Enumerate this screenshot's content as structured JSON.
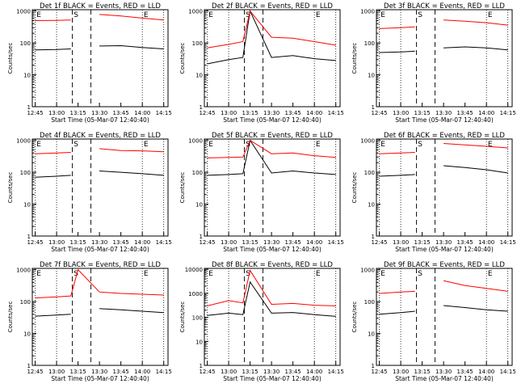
{
  "figure": {
    "common": {
      "xlabel": "Start Time (05-Mar-07 12:40:40)",
      "ylabel": "Counts/sec",
      "x_ticks": [
        "12:45",
        "13:00",
        "13:15",
        "13:30",
        "13:45",
        "14:00",
        "14:15"
      ],
      "y_ticks": [
        "1",
        "10",
        "100",
        "1000"
      ],
      "y_ticks_panel8": [
        "1",
        "10",
        "100",
        "1000",
        "10000"
      ],
      "marker_labels": [
        "E",
        "S",
        "E"
      ],
      "colors": {
        "events": "#000000",
        "lld": "#ff0000"
      }
    }
  },
  "chart_data": [
    {
      "type": "line",
      "panel": 1,
      "title": "Det 1f BLACK = Events, RED = LLD",
      "xlim": [
        "12:43",
        "14:18"
      ],
      "ylim": [
        1,
        1100
      ],
      "yscale": "log",
      "x": [
        "12:45",
        "13:00",
        "13:10",
        "13:15",
        "13:30",
        "13:45",
        "14:00",
        "14:15"
      ],
      "series": [
        {
          "name": "Events",
          "color": "#000000",
          "values": [
            60,
            62,
            65,
            null,
            80,
            82,
            72,
            65
          ]
        },
        {
          "name": "LLD",
          "color": "#ff0000",
          "values": [
            500,
            510,
            520,
            null,
            780,
            700,
            600,
            520
          ]
        }
      ]
    },
    {
      "type": "line",
      "panel": 2,
      "title": "Det 2f BLACK = Events, RED = LLD",
      "xlim": [
        "12:43",
        "14:18"
      ],
      "ylim": [
        1,
        1100
      ],
      "yscale": "log",
      "x": [
        "12:45",
        "13:00",
        "13:10",
        "13:15",
        "13:30",
        "13:45",
        "14:00",
        "14:15"
      ],
      "series": [
        {
          "name": "Events",
          "color": "#000000",
          "values": [
            22,
            30,
            35,
            1000,
            35,
            40,
            32,
            28
          ]
        },
        {
          "name": "LLD",
          "color": "#ff0000",
          "values": [
            70,
            90,
            110,
            1000,
            150,
            140,
            110,
            85
          ]
        }
      ]
    },
    {
      "type": "line",
      "panel": 3,
      "title": "Det 3f BLACK = Events, RED = LLD",
      "xlim": [
        "12:43",
        "14:18"
      ],
      "ylim": [
        1,
        1100
      ],
      "yscale": "log",
      "x": [
        "12:45",
        "13:00",
        "13:10",
        "13:15",
        "13:30",
        "13:45",
        "14:00",
        "14:15"
      ],
      "series": [
        {
          "name": "Events",
          "color": "#000000",
          "values": [
            50,
            52,
            55,
            null,
            70,
            75,
            70,
            60
          ]
        },
        {
          "name": "LLD",
          "color": "#ff0000",
          "values": [
            280,
            300,
            320,
            null,
            520,
            480,
            430,
            360
          ]
        }
      ]
    },
    {
      "type": "line",
      "panel": 4,
      "title": "Det 4f BLACK = Events, RED = LLD",
      "xlim": [
        "12:43",
        "14:18"
      ],
      "ylim": [
        1,
        1100
      ],
      "yscale": "log",
      "x": [
        "12:45",
        "13:00",
        "13:10",
        "13:15",
        "13:30",
        "13:45",
        "14:00",
        "14:15"
      ],
      "series": [
        {
          "name": "Events",
          "color": "#000000",
          "values": [
            70,
            75,
            80,
            null,
            110,
            100,
            90,
            80
          ]
        },
        {
          "name": "LLD",
          "color": "#ff0000",
          "values": [
            380,
            400,
            420,
            null,
            550,
            480,
            470,
            440
          ]
        }
      ]
    },
    {
      "type": "line",
      "panel": 5,
      "title": "Det 5f BLACK = Events, RED = LLD",
      "xlim": [
        "12:43",
        "14:18"
      ],
      "ylim": [
        1,
        1100
      ],
      "yscale": "log",
      "x": [
        "12:45",
        "13:00",
        "13:10",
        "13:15",
        "13:30",
        "13:45",
        "14:00",
        "14:15"
      ],
      "series": [
        {
          "name": "Events",
          "color": "#000000",
          "values": [
            80,
            85,
            90,
            1000,
            95,
            110,
            95,
            85
          ]
        },
        {
          "name": "LLD",
          "color": "#ff0000",
          "values": [
            280,
            290,
            300,
            1000,
            380,
            400,
            330,
            290
          ]
        }
      ]
    },
    {
      "type": "line",
      "panel": 6,
      "title": "Det 6f BLACK = Events, RED = LLD",
      "xlim": [
        "12:43",
        "14:18"
      ],
      "ylim": [
        1,
        1100
      ],
      "yscale": "log",
      "x": [
        "12:45",
        "13:00",
        "13:10",
        "13:15",
        "13:30",
        "13:45",
        "14:00",
        "14:15"
      ],
      "series": [
        {
          "name": "Events",
          "color": "#000000",
          "values": [
            75,
            80,
            85,
            null,
            160,
            140,
            120,
            95
          ]
        },
        {
          "name": "LLD",
          "color": "#ff0000",
          "values": [
            380,
            400,
            420,
            null,
            800,
            720,
            650,
            580
          ]
        }
      ]
    },
    {
      "type": "line",
      "panel": 7,
      "title": "Det 7f BLACK = Events, RED = LLD",
      "xlim": [
        "12:43",
        "14:18"
      ],
      "ylim": [
        1,
        1100
      ],
      "yscale": "log",
      "x": [
        "12:45",
        "13:00",
        "13:10",
        "13:15",
        "13:30",
        "13:45",
        "14:00",
        "14:15"
      ],
      "series": [
        {
          "name": "Events",
          "color": "#000000",
          "values": [
            35,
            38,
            40,
            null,
            60,
            55,
            50,
            45
          ]
        },
        {
          "name": "LLD",
          "color": "#ff0000",
          "values": [
            130,
            140,
            150,
            1000,
            200,
            180,
            170,
            160
          ]
        }
      ]
    },
    {
      "type": "line",
      "panel": 8,
      "title": "Det 8f BLACK = Events, RED = LLD",
      "xlim": [
        "12:43",
        "14:18"
      ],
      "ylim": [
        1,
        11000
      ],
      "yscale": "log",
      "x": [
        "12:45",
        "13:00",
        "13:10",
        "13:15",
        "13:30",
        "13:45",
        "14:00",
        "14:15"
      ],
      "series": [
        {
          "name": "Events",
          "color": "#000000",
          "values": [
            120,
            150,
            130,
            3000,
            150,
            160,
            130,
            110
          ]
        },
        {
          "name": "LLD",
          "color": "#ff0000",
          "values": [
            300,
            500,
            400,
            9000,
            350,
            380,
            320,
            300
          ]
        }
      ]
    },
    {
      "type": "line",
      "panel": 9,
      "title": "Det 9f BLACK = Events, RED = LLD",
      "xlim": [
        "12:43",
        "14:18"
      ],
      "ylim": [
        1,
        1100
      ],
      "yscale": "log",
      "x": [
        "12:45",
        "13:00",
        "13:10",
        "13:15",
        "13:30",
        "13:45",
        "14:00",
        "14:15"
      ],
      "series": [
        {
          "name": "Events",
          "color": "#000000",
          "values": [
            40,
            45,
            50,
            null,
            75,
            65,
            55,
            50
          ]
        },
        {
          "name": "LLD",
          "color": "#ff0000",
          "values": [
            180,
            200,
            210,
            null,
            450,
            320,
            260,
            210
          ]
        }
      ]
    }
  ]
}
